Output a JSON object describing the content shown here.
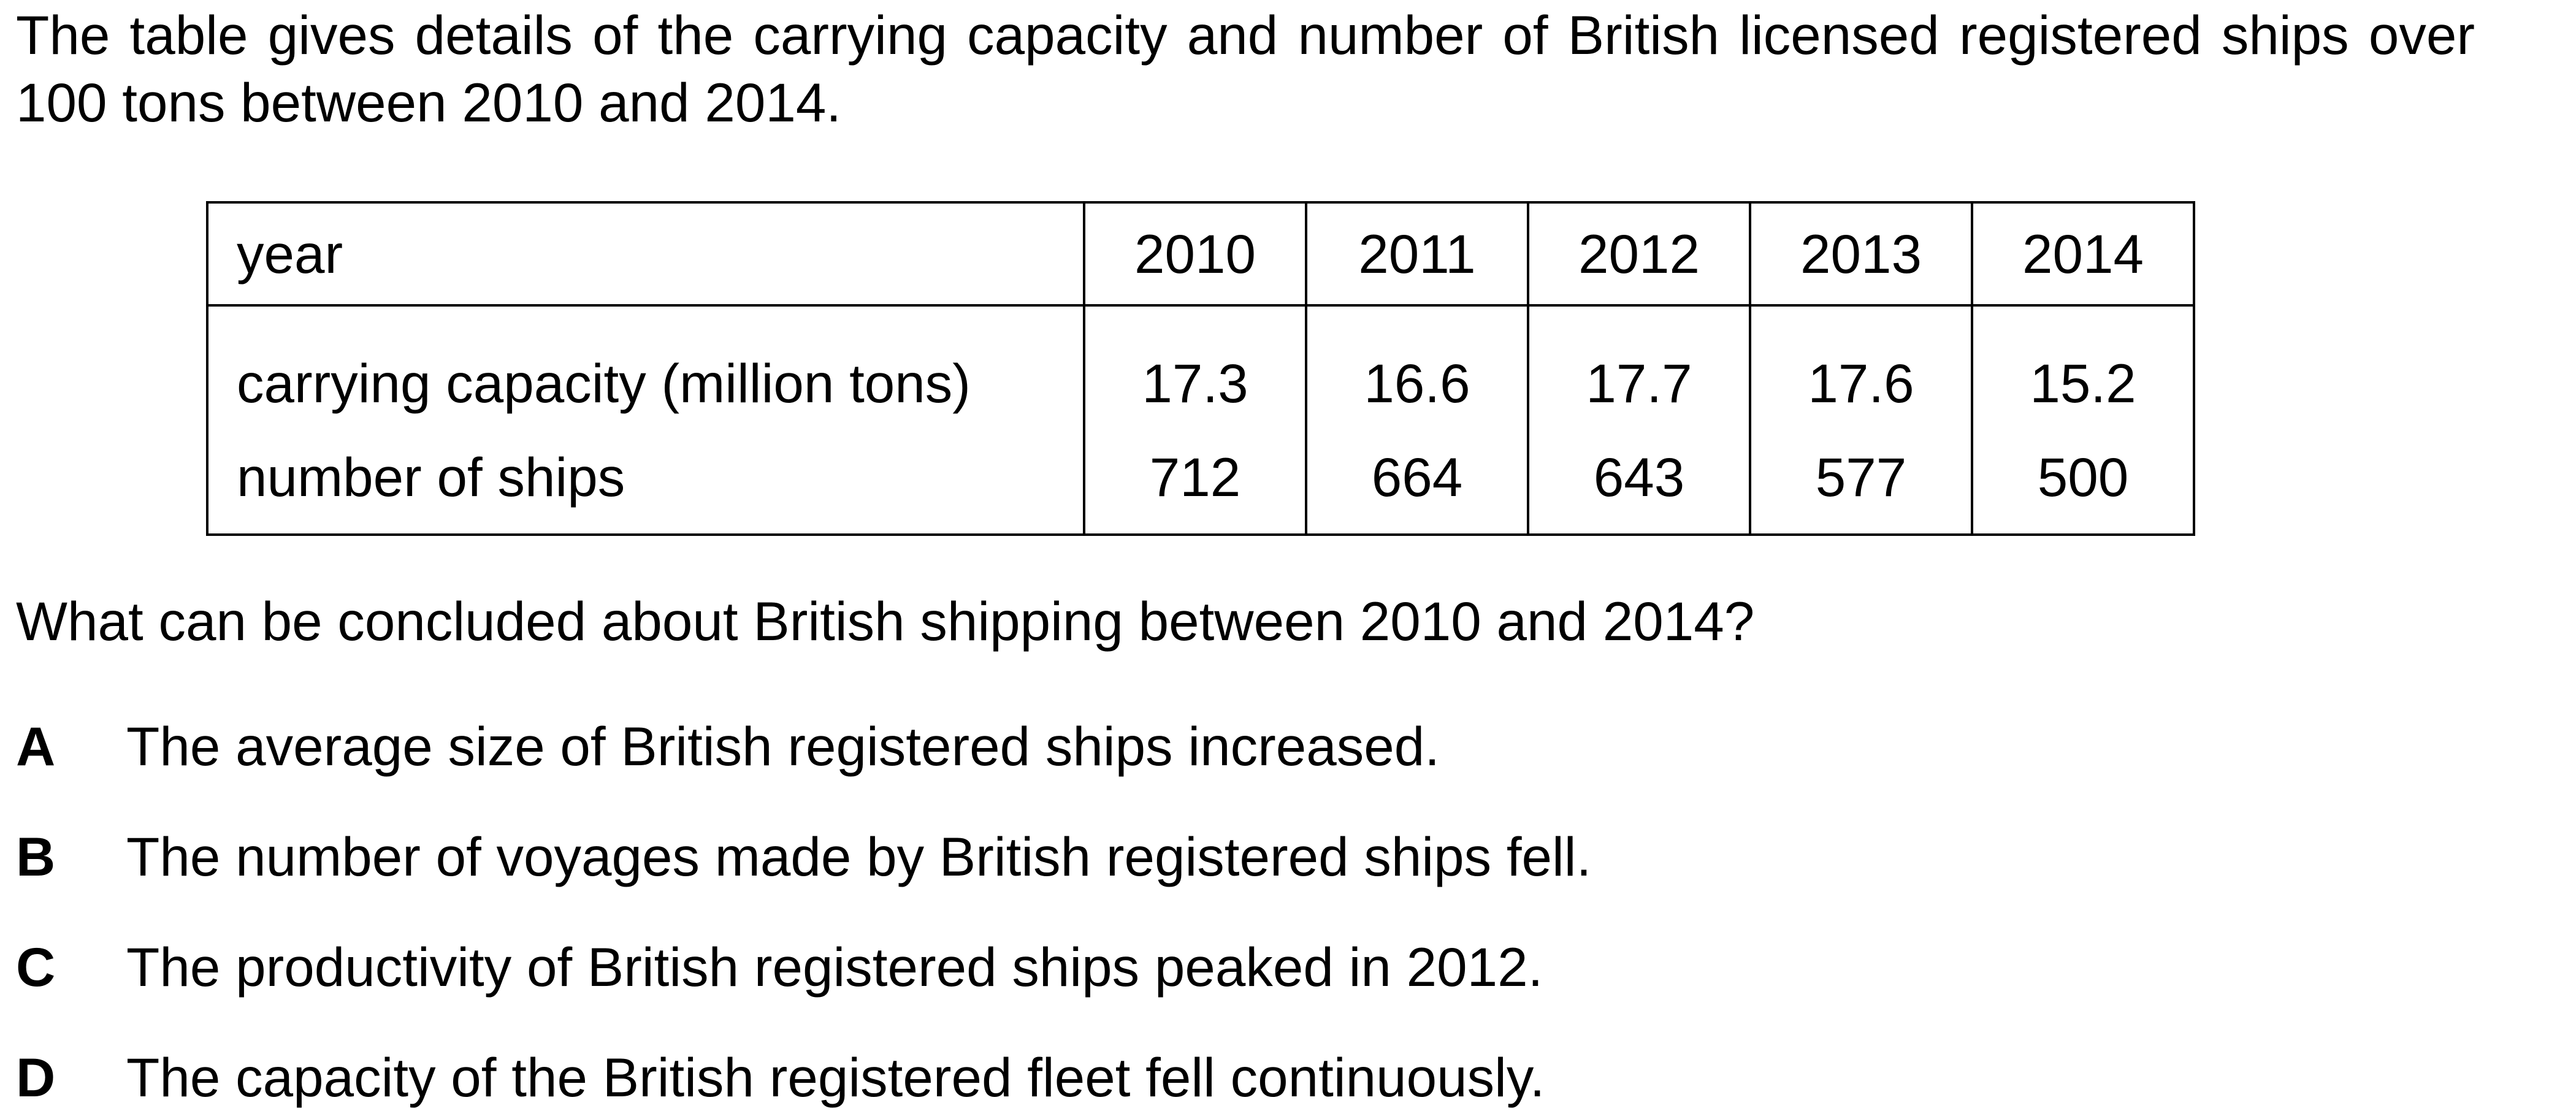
{
  "intro": "The table gives details of the carrying capacity and number of British licensed registered ships over 100 tons between 2010 and 2014.",
  "table": {
    "header": {
      "label": "year",
      "years": [
        "2010",
        "2011",
        "2012",
        "2013",
        "2014"
      ]
    },
    "rows": [
      {
        "label": "carrying capacity (million tons)",
        "values": [
          "17.3",
          "16.6",
          "17.7",
          "17.6",
          "15.2"
        ]
      },
      {
        "label": "number of ships",
        "values": [
          "712",
          "664",
          "643",
          "577",
          "500"
        ]
      }
    ]
  },
  "question": "What can be concluded about British shipping between 2010 and 2014?",
  "options": [
    {
      "letter": "A",
      "text": "The average size of British registered ships increased."
    },
    {
      "letter": "B",
      "text": "The number of voyages made by British registered ships fell."
    },
    {
      "letter": "C",
      "text": "The productivity of British registered ships peaked in 2012."
    },
    {
      "letter": "D",
      "text": "The capacity of the British registered fleet fell continuously."
    }
  ]
}
